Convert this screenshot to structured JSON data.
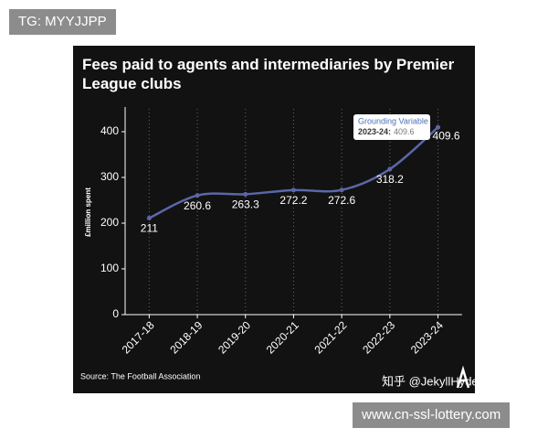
{
  "overlay": {
    "top_left": "TG: MYYJJPP",
    "bottom_right": "www.cn-ssl-lottery.com",
    "watermark": "知乎 @JekyllHyde"
  },
  "chart_data": {
    "type": "line",
    "title": "Fees paid to agents and intermediaries by Premier League clubs",
    "y_label": "£million spent",
    "source": "Source: The Football Association",
    "categories": [
      "2017-18",
      "2018-19",
      "2019-20",
      "2020-21",
      "2021-22",
      "2022-23",
      "2023-24"
    ],
    "series": [
      {
        "name": "Grounding Variable",
        "color": "#5b67a8",
        "values": [
          211,
          260.6,
          263.3,
          272.2,
          272.6,
          318.2,
          409.6
        ]
      }
    ],
    "tooltip": {
      "label": "2023-24:"
    },
    "ylim": [
      0,
      450
    ],
    "yticks": [
      0,
      100,
      200,
      300,
      400
    ],
    "grid": true
  }
}
